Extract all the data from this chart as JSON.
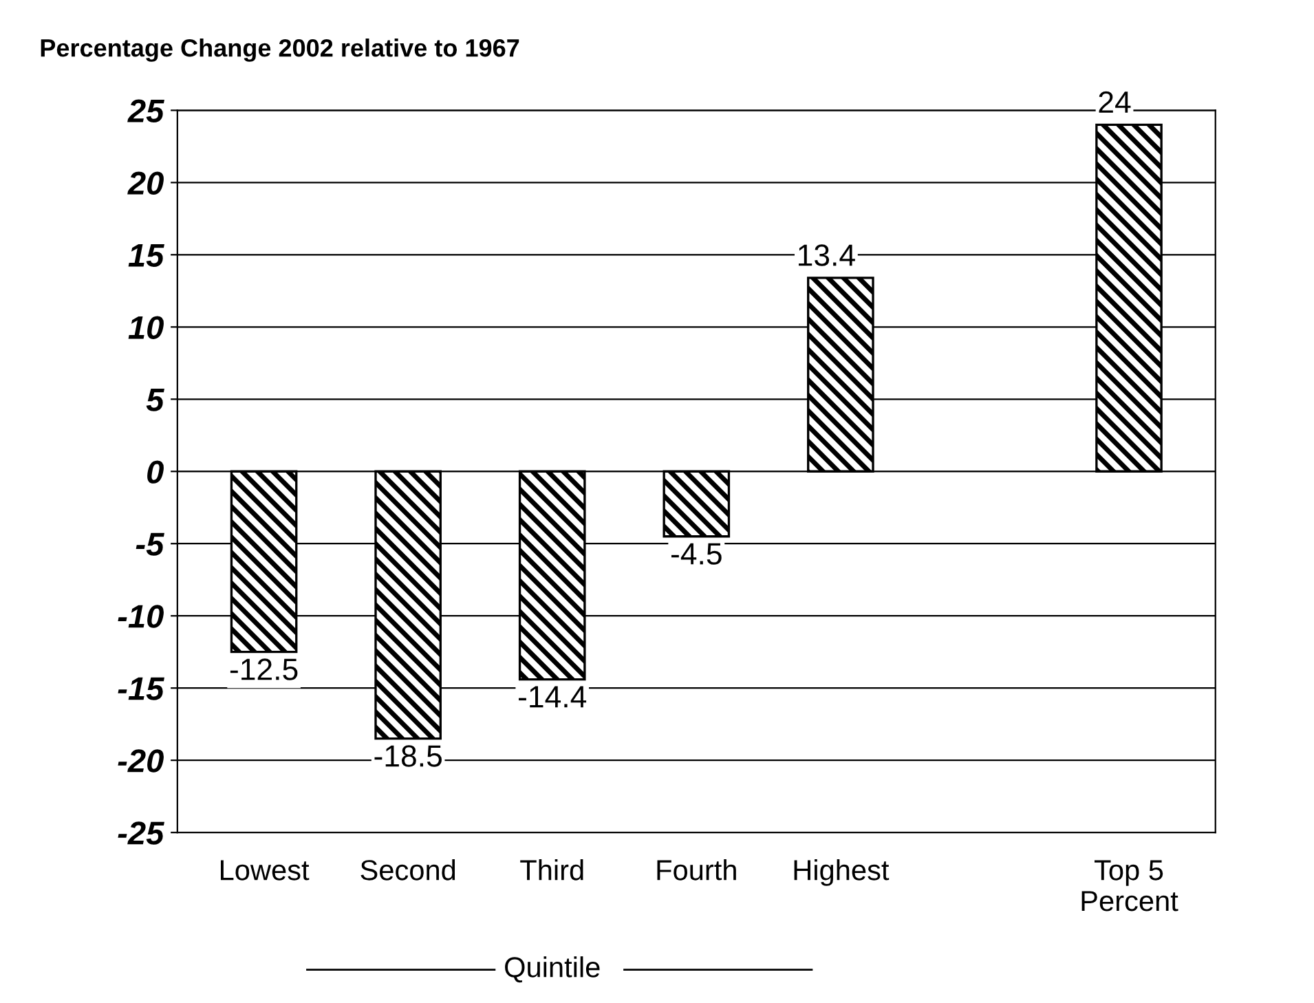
{
  "chart_data": {
    "type": "bar",
    "title": "Percentage Change 2002 relative to 1967",
    "xlabel": "Quintile",
    "categories": [
      "Lowest",
      "Second",
      "Third",
      "Fourth",
      "Highest",
      null,
      "Top 5\nPercent"
    ],
    "values": [
      -12.5,
      -18.5,
      -14.4,
      -4.5,
      13.4,
      null,
      24
    ],
    "color": "#000000",
    "ylim": [
      -25,
      25
    ],
    "yticks": [
      -25,
      -20,
      -15,
      -10,
      -5,
      0,
      5,
      10,
      15,
      20,
      25
    ],
    "grid": "y",
    "data_labels": true
  }
}
